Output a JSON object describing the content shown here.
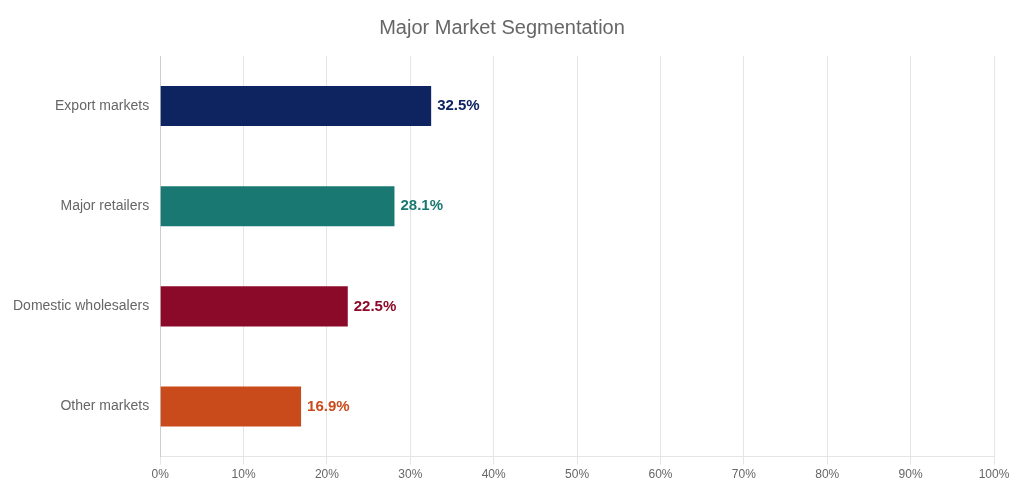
{
  "chart_data": {
    "type": "bar",
    "title": "Major Market Segmentation",
    "orientation": "horizontal",
    "categories": [
      "Export markets",
      "Major retailers",
      "Domestic wholesalers",
      "Other markets"
    ],
    "values": [
      32.5,
      28.1,
      22.5,
      16.9
    ],
    "value_labels": [
      "32.5%",
      "28.1%",
      "22.5%",
      "16.9%"
    ],
    "colors": [
      "#0d2461",
      "#1a7872",
      "#8b0a2a",
      "#c94a1a"
    ],
    "xlim": [
      0,
      100
    ],
    "xticks": [
      {
        "value": 0,
        "label": "0%"
      },
      {
        "value": 10,
        "label": "10%"
      },
      {
        "value": 20,
        "label": "20%"
      },
      {
        "value": 30,
        "label": "30%"
      },
      {
        "value": 40,
        "label": "40%"
      },
      {
        "value": 50,
        "label": "50%"
      },
      {
        "value": 60,
        "label": "60%"
      },
      {
        "value": 70,
        "label": "70%"
      },
      {
        "value": 80,
        "label": "80%"
      },
      {
        "value": 90,
        "label": "90%"
      },
      {
        "value": 100,
        "label": "100%"
      }
    ],
    "grid": true,
    "data_labels": true
  }
}
